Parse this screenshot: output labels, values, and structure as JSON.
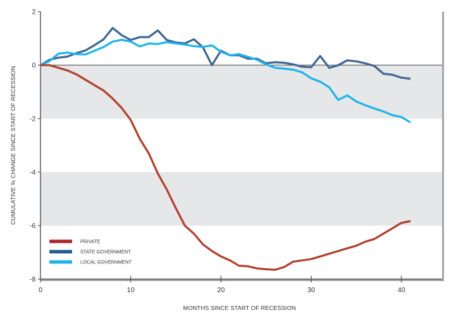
{
  "chart_data": {
    "type": "line",
    "title": "",
    "xlabel": "MONTHS SINCE START OF RECESSION",
    "ylabel": "CUMULATIVE % CHANGE SINCE START OF RECESSION",
    "xlim": [
      0,
      44.5
    ],
    "ylim": [
      -8,
      2
    ],
    "xticks": [
      0,
      10,
      20,
      30,
      40
    ],
    "yticks": [
      2,
      0,
      -2,
      -4,
      -6,
      -8
    ],
    "shaded_bands": [
      [
        -2,
        0
      ],
      [
        -6,
        -4
      ]
    ],
    "grid": false,
    "legend_position": "bottom-left",
    "x": [
      0,
      1,
      2,
      3,
      4,
      5,
      6,
      7,
      8,
      9,
      10,
      11,
      12,
      13,
      14,
      15,
      16,
      17,
      18,
      19,
      20,
      21,
      22,
      23,
      24,
      25,
      26,
      27,
      28,
      29,
      30,
      31,
      32,
      33,
      34,
      35,
      36,
      37,
      38,
      39,
      40,
      41
    ],
    "series": [
      {
        "name": "PRIVATE",
        "color": "#b0402f",
        "legend_color": "#a8272b",
        "values": [
          0,
          0,
          -0.1,
          -0.2,
          -0.35,
          -0.55,
          -0.75,
          -0.95,
          -1.25,
          -1.6,
          -2.05,
          -2.75,
          -3.3,
          -4.05,
          -4.65,
          -5.35,
          -6.0,
          -6.3,
          -6.7,
          -6.95,
          -7.15,
          -7.3,
          -7.5,
          -7.52,
          -7.6,
          -7.63,
          -7.65,
          -7.55,
          -7.35,
          -7.3,
          -7.25,
          -7.15,
          -7.05,
          -6.95,
          -6.85,
          -6.75,
          -6.6,
          -6.5,
          -6.3,
          -6.1,
          -5.9,
          -5.83
        ]
      },
      {
        "name": "STATE GOVERNMENT",
        "color": "#3f6692",
        "legend_color": "#1d5a8e",
        "values": [
          0,
          0.2,
          0.28,
          0.32,
          0.45,
          0.55,
          0.75,
          0.97,
          1.39,
          1.12,
          0.94,
          1.05,
          1.05,
          1.3,
          0.94,
          0.85,
          0.81,
          0.97,
          0.67,
          0,
          0.54,
          0.37,
          0.37,
          0.24,
          0.24,
          0.07,
          0.11,
          0.09,
          0.03,
          -0.06,
          -0.08,
          0.34,
          -0.1,
          0,
          0.18,
          0.14,
          0.07,
          -0.03,
          -0.32,
          -0.36,
          -0.47,
          -0.51
        ]
      },
      {
        "name": "LOCAL GOVERNMENT",
        "color": "#1eb4ea",
        "legend_color": "#1fb3ea",
        "values": [
          0,
          0.15,
          0.43,
          0.47,
          0.41,
          0.4,
          0.54,
          0.68,
          0.88,
          0.95,
          0.88,
          0.7,
          0.81,
          0.79,
          0.86,
          0.81,
          0.77,
          0.71,
          0.68,
          0.74,
          0.5,
          0.37,
          0.41,
          0.31,
          0.2,
          0.03,
          -0.1,
          -0.13,
          -0.17,
          -0.27,
          -0.49,
          -0.62,
          -0.83,
          -1.3,
          -1.13,
          -1.36,
          -1.5,
          -1.62,
          -1.73,
          -1.87,
          -1.94,
          -2.14
        ]
      }
    ]
  }
}
